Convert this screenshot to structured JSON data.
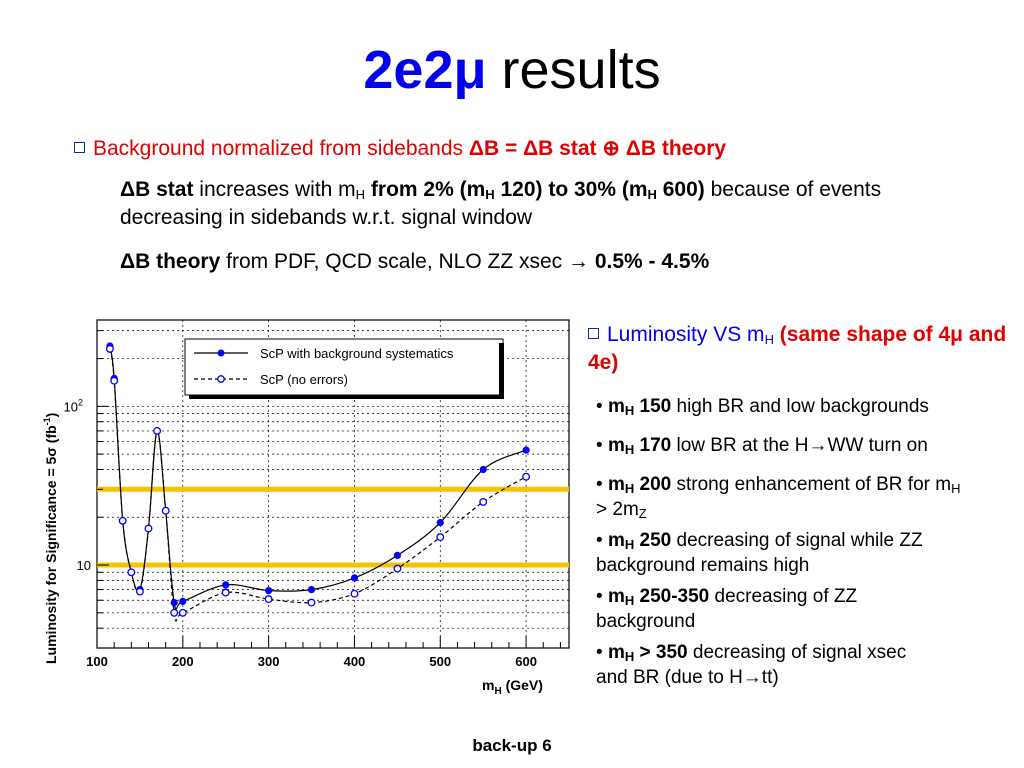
{
  "title": {
    "highlight": "2e2μ",
    "rest": " results"
  },
  "background": {
    "lead": "Background normalized from sidebands ",
    "formula": "ΔB = ΔB stat ⊕ ΔB theory",
    "bstat": {
      "name": "ΔB stat",
      "t1": " increases with m",
      "sub": "H",
      "b1": " from 2% (m",
      "b1sub": "H",
      "b1b": " 120) to 30% (m",
      "b2sub": "H",
      "b2": " 600)",
      "t2": " because of events decreasing in sidebands w.r.t. signal window"
    },
    "btheory": {
      "name": "ΔB theory",
      "text": " from PDF, QCD scale, NLO ZZ xsec → ",
      "range": "0.5% - 4.5%"
    }
  },
  "luminosity": {
    "lead": "Luminosity VS m",
    "sub": "H",
    "note": " (same shape of 4μ and 4e)"
  },
  "notes": [
    {
      "m": "m",
      "sub": "H",
      "val": " 150",
      "text": " high BR and low backgrounds"
    },
    {
      "m": "m",
      "sub": "H",
      "val": " 170",
      "text": " low BR at the H→WW turn on"
    },
    {
      "m": "m",
      "sub": "H",
      "val": " 200",
      "text": " strong enhancement of BR for m",
      "sub2": "H",
      "text2": " > 2m",
      "sub3": "Z"
    },
    {
      "m": "m",
      "sub": "H",
      "val": " 250",
      "text": " decreasing of signal while ZZ background remains high"
    },
    {
      "m": "m",
      "sub": "H",
      "val": " 250-350",
      "text": " decreasing of  ZZ background"
    },
    {
      "m": "m",
      "sub": "H",
      "val": " > 350",
      "text": " decreasing of signal xsec and BR (due to H→tt)"
    }
  ],
  "footer": "back-up 6",
  "colors": {
    "title_blue": "#0000ee",
    "text_red": "#e00000",
    "series_blue": "#0000ff",
    "band_yellow": "#f5c400"
  },
  "chart_data": {
    "type": "scatter",
    "xlabel": "m",
    "xlabel_sub": "H",
    "xlabel_unit": " (GeV)",
    "ylabel": "Luminosity for Significance = 5σ (fb",
    "ylabel_sup": "-1",
    "ylabel_end": ")",
    "xlim": [
      100,
      650
    ],
    "ylim": [
      3,
      350
    ],
    "yscale": "log",
    "x_ticks": [
      100,
      200,
      300,
      400,
      500,
      600
    ],
    "y_ticks": [
      {
        "v": 10,
        "label": "10"
      },
      {
        "v": 100,
        "label": "10",
        "sup": "2"
      }
    ],
    "grid": true,
    "legend_position": "top-right",
    "reference_lines": [
      10,
      30
    ],
    "series": [
      {
        "name": "ScP with background systematics",
        "style": "solid-filled",
        "x": [
          115,
          120,
          130,
          140,
          150,
          160,
          170,
          180,
          190,
          200,
          250,
          300,
          350,
          400,
          450,
          500,
          550,
          600
        ],
        "y": [
          240,
          150,
          19,
          9.0,
          7.0,
          17,
          70,
          22,
          5.8,
          5.9,
          7.5,
          6.9,
          7.0,
          8.3,
          11.5,
          18.5,
          40,
          53
        ]
      },
      {
        "name": "ScP (no errors)",
        "style": "dashed-open",
        "x": [
          115,
          120,
          130,
          140,
          150,
          160,
          170,
          180,
          190,
          200,
          250,
          300,
          350,
          400,
          450,
          500,
          550,
          600
        ],
        "y": [
          230,
          145,
          19,
          9.0,
          6.8,
          17,
          70,
          22,
          5.0,
          5.0,
          6.7,
          6.1,
          5.8,
          6.6,
          9.5,
          15,
          25,
          36
        ]
      }
    ]
  }
}
